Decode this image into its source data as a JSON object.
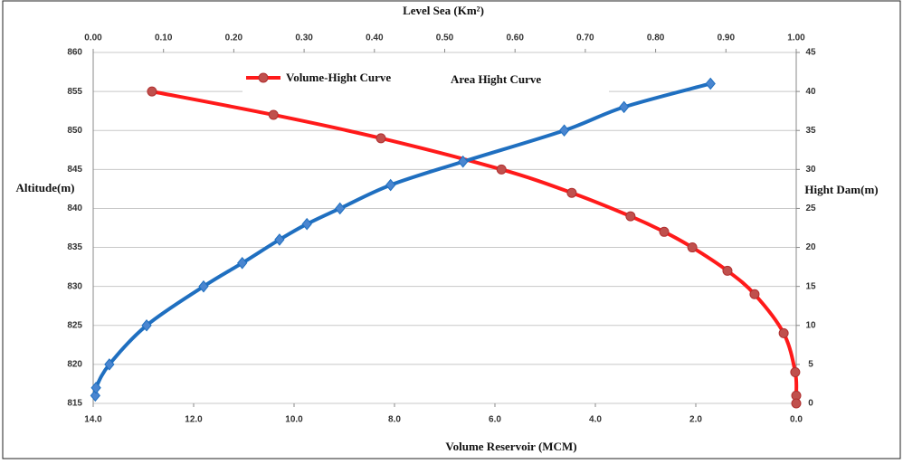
{
  "chart_data": {
    "type": "line",
    "x_title": "Volume Reservoir (MCM)",
    "x2_title": "Level Sea (Km²)",
    "y_title": "Altitude(m)",
    "y2_title": "Hight Dam(m)",
    "xlim": [
      14,
      0
    ],
    "xticks": [
      {
        "value": 14,
        "label": "14.0"
      },
      {
        "value": 12,
        "label": "12.0"
      },
      {
        "value": 10,
        "label": "10.0"
      },
      {
        "value": 8,
        "label": "8.0"
      },
      {
        "value": 6,
        "label": "6.0"
      },
      {
        "value": 4,
        "label": "4.0"
      },
      {
        "value": 2,
        "label": "2.0"
      },
      {
        "value": 0,
        "label": "0.0"
      }
    ],
    "x2lim": [
      0,
      1
    ],
    "x2ticks": [
      {
        "value": 0,
        "label": "0.00"
      },
      {
        "value": 0.1,
        "label": "0.10"
      },
      {
        "value": 0.2,
        "label": "0.20"
      },
      {
        "value": 0.3,
        "label": "0.30"
      },
      {
        "value": 0.4,
        "label": "0.40"
      },
      {
        "value": 0.5,
        "label": "0.50"
      },
      {
        "value": 0.6,
        "label": "0.60"
      },
      {
        "value": 0.7,
        "label": "0.70"
      },
      {
        "value": 0.8,
        "label": "0.80"
      },
      {
        "value": 0.9,
        "label": "0.90"
      },
      {
        "value": 1,
        "label": "1.00"
      }
    ],
    "ylim": [
      815,
      860
    ],
    "yticks": [
      815,
      820,
      825,
      830,
      835,
      840,
      845,
      850,
      855,
      860
    ],
    "y2lim": [
      0,
      45
    ],
    "y2ticks": [
      0,
      5,
      10,
      15,
      20,
      25,
      30,
      35,
      40,
      45
    ],
    "grid": true,
    "series": [
      {
        "name": "Volume-Hight Curve",
        "color": "#ff1a1a",
        "marker": "circle",
        "x": [
          12.83,
          10.41,
          8.27,
          5.87,
          4.47,
          3.3,
          2.63,
          2.07,
          1.37,
          0.83,
          0.25,
          0.02,
          0,
          0
        ],
        "values": [
          855,
          852,
          849,
          845,
          842,
          839,
          837,
          835,
          832,
          829,
          824,
          819,
          816,
          815
        ]
      },
      {
        "name": "Area Hight Curve",
        "color": "#1f6fc0",
        "marker": "diamond",
        "axis": "x2",
        "x": [
          0.003,
          0.004,
          0.023,
          0.076,
          0.157,
          0.212,
          0.265,
          0.304,
          0.351,
          0.423,
          0.526,
          0.67,
          0.755,
          0.878
        ],
        "values": [
          816,
          817,
          820,
          825,
          830,
          833,
          836,
          838,
          840,
          843,
          846,
          850,
          853,
          856
        ]
      }
    ]
  }
}
